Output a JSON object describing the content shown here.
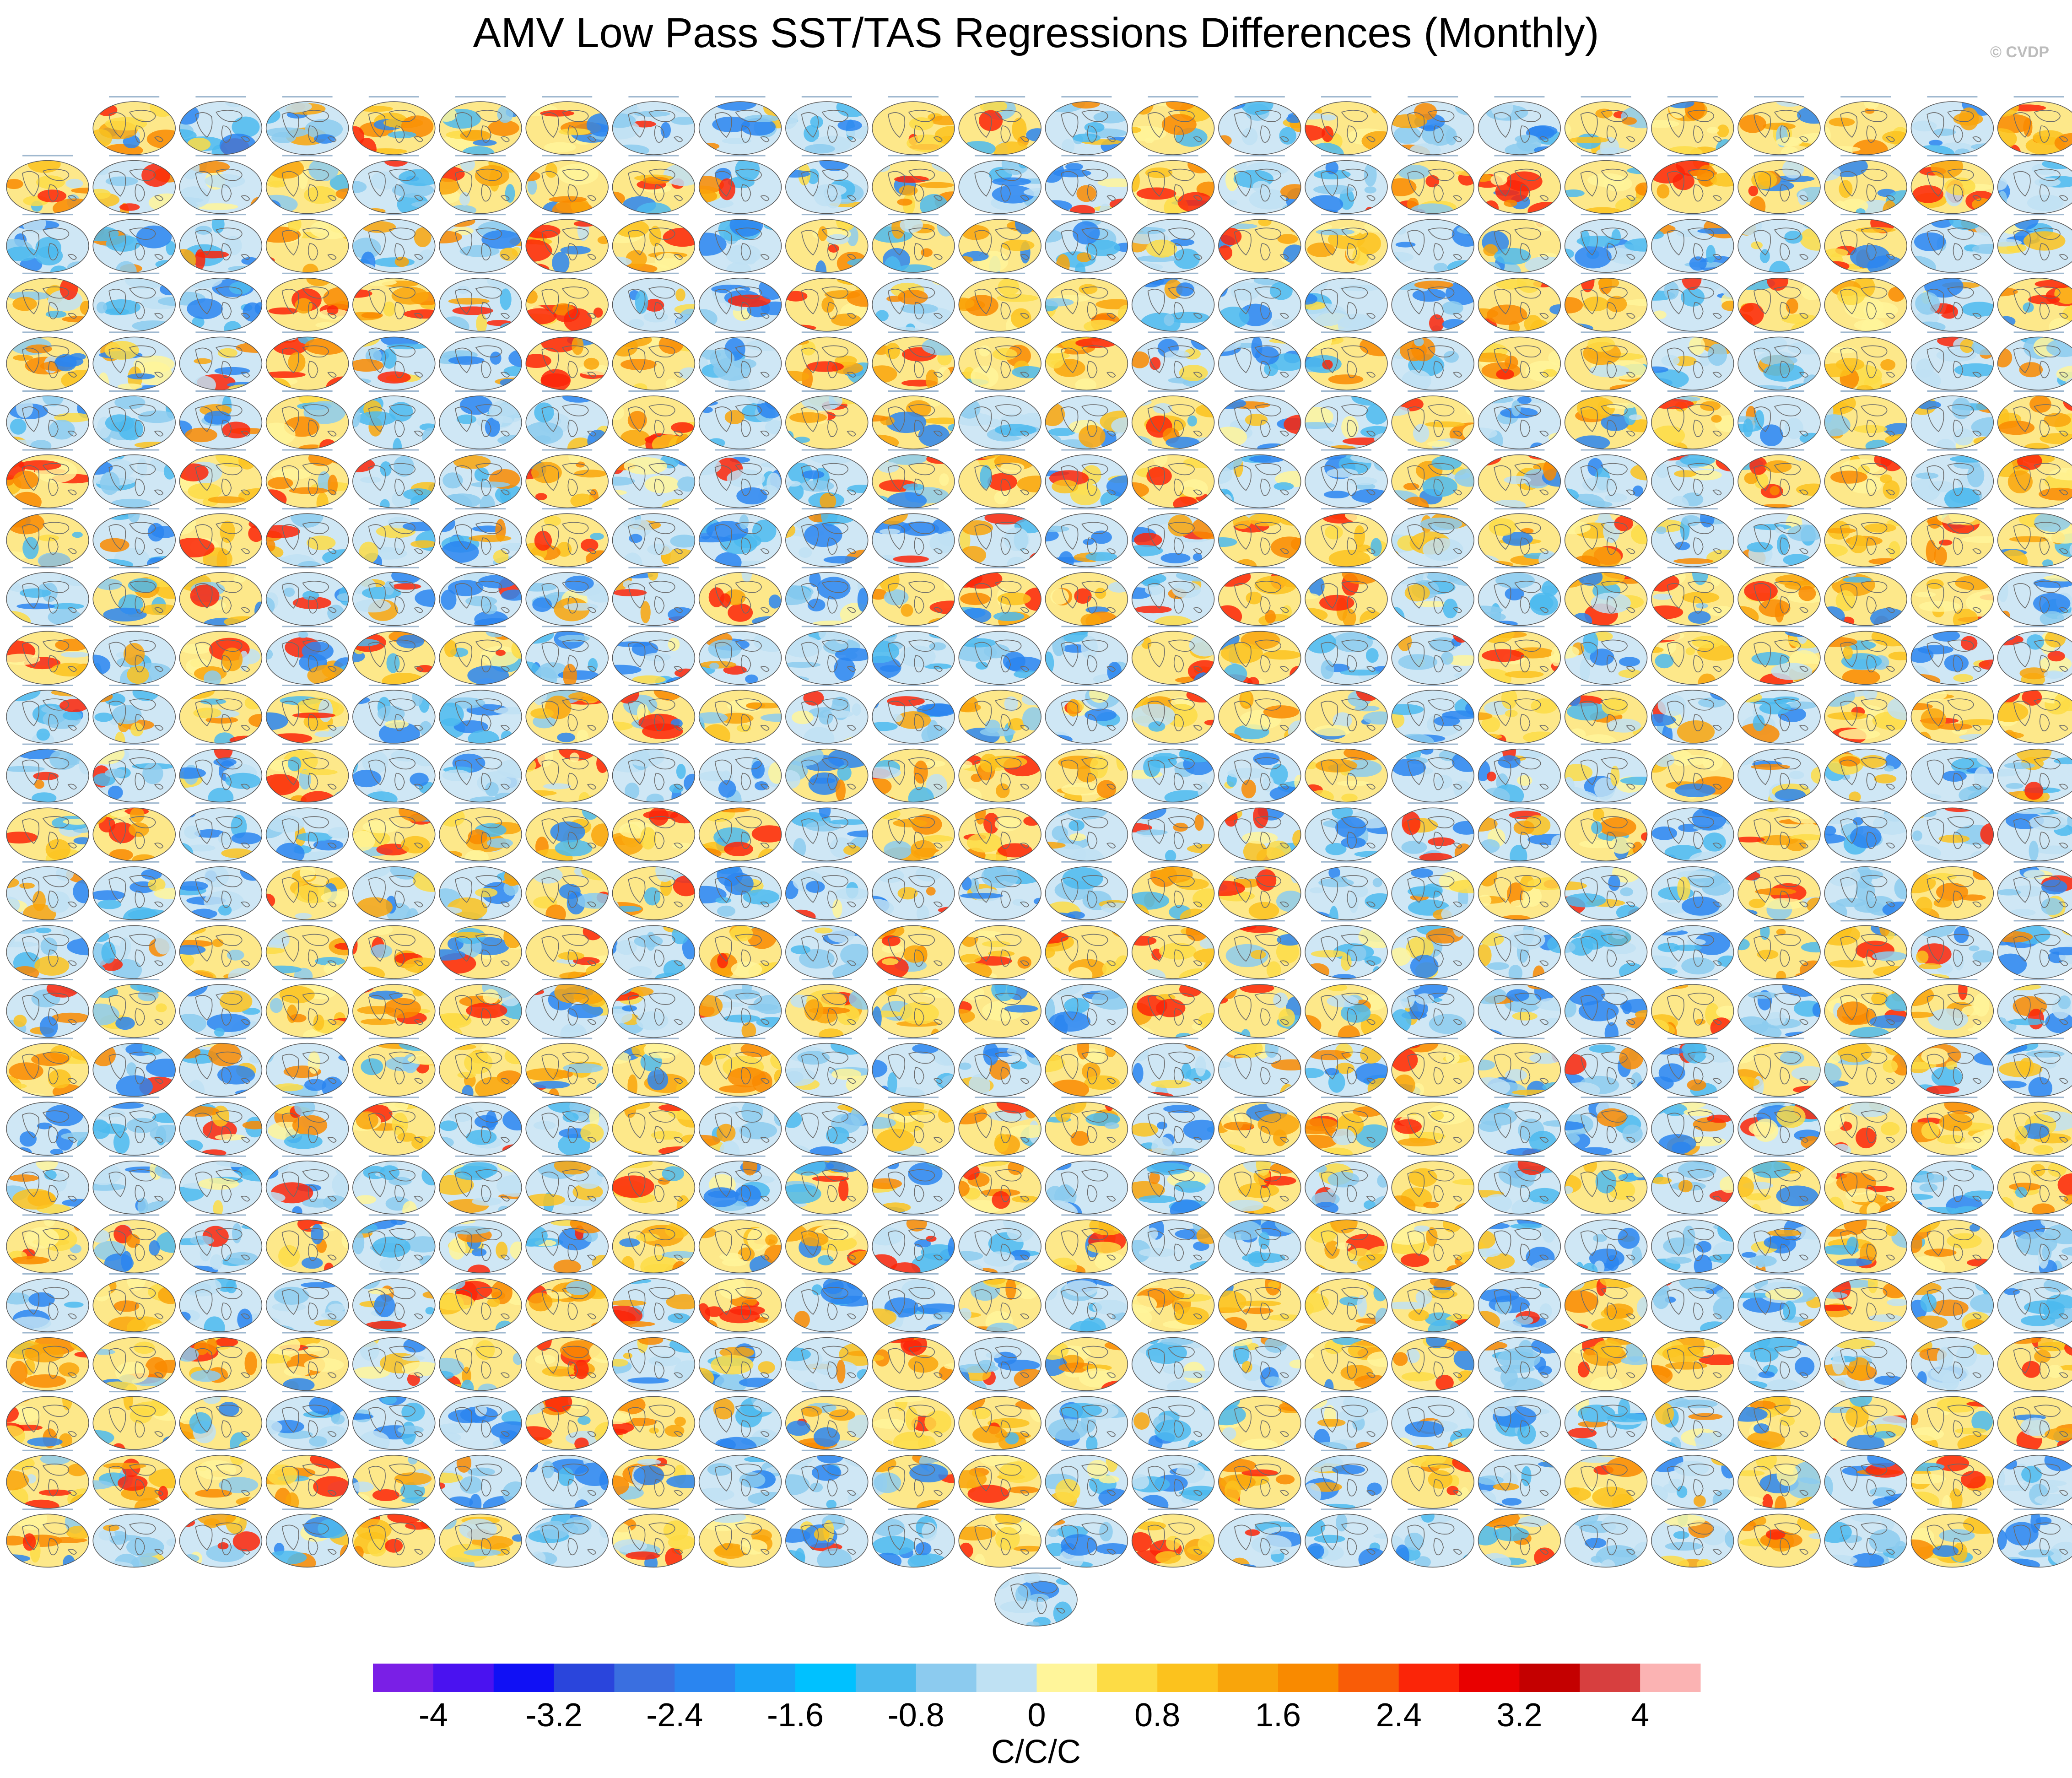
{
  "title": "AMV Low Pass SST/TAS Regressions Differences (Monthly)",
  "watermark": "© CVDP",
  "chart_data": {
    "type": "heatmap",
    "title": "AMV Low Pass SST/TAS Regressions Differences (Monthly)",
    "description_of_panels": "grid of global map panels, 24 columns by 25 rows plus one centered panel",
    "panel_rows": [
      {
        "row": 1,
        "panels": 23
      },
      {
        "row": 2,
        "panels": 24
      },
      {
        "row": 3,
        "panels": 24
      },
      {
        "row": 4,
        "panels": 24
      },
      {
        "row": 5,
        "panels": 24
      },
      {
        "row": 6,
        "panels": 24
      },
      {
        "row": 7,
        "panels": 24
      },
      {
        "row": 8,
        "panels": 24
      },
      {
        "row": 9,
        "panels": 24
      },
      {
        "row": 10,
        "panels": 24
      },
      {
        "row": 11,
        "panels": 24
      },
      {
        "row": 12,
        "panels": 24
      },
      {
        "row": 13,
        "panels": 24
      },
      {
        "row": 14,
        "panels": 24
      },
      {
        "row": 15,
        "panels": 24
      },
      {
        "row": 16,
        "panels": 24
      },
      {
        "row": 17,
        "panels": 24
      },
      {
        "row": 18,
        "panels": 24
      },
      {
        "row": 19,
        "panels": 24
      },
      {
        "row": 20,
        "panels": 24
      },
      {
        "row": 21,
        "panels": 24
      },
      {
        "row": 22,
        "panels": 24
      },
      {
        "row": 23,
        "panels": 24
      },
      {
        "row": 24,
        "panels": 24
      },
      {
        "row": 25,
        "panels": 24
      },
      {
        "row": 26,
        "panels": 1
      }
    ],
    "colorbar": {
      "unit": "C/C/C",
      "tick_labels": [
        "-4",
        "-3.2",
        "-2.4",
        "-1.6",
        "-0.8",
        "0",
        "0.8",
        "1.6",
        "2.4",
        "3.2",
        "4"
      ],
      "bounds": [
        -4.4,
        4.4
      ],
      "colors": [
        "#7a1fe6",
        "#4a12f0",
        "#1010f5",
        "#2a45dc",
        "#3a6fe0",
        "#2a85f0",
        "#1aa2f7",
        "#00c1ff",
        "#4cbaee",
        "#8ccbef",
        "#bfe1f3",
        "#fff59a",
        "#fddc45",
        "#fcc21d",
        "#f9a50b",
        "#f98a00",
        "#f95c07",
        "#fb2508",
        "#e90000",
        "#c40000",
        "#d73f3f",
        "#fbb3b3"
      ]
    }
  }
}
